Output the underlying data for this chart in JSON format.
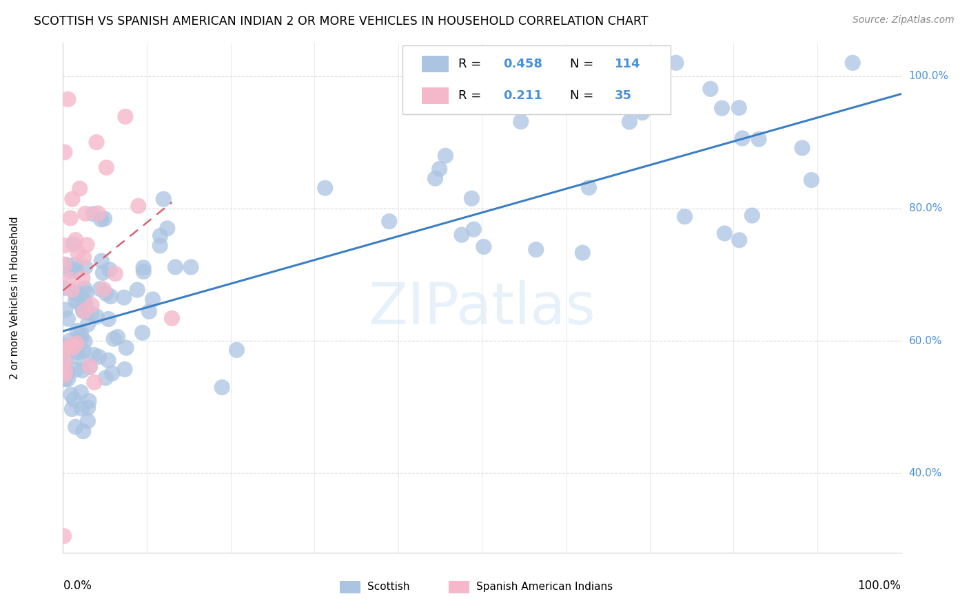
{
  "title": "SCOTTISH VS SPANISH AMERICAN INDIAN 2 OR MORE VEHICLES IN HOUSEHOLD CORRELATION CHART",
  "source": "Source: ZipAtlas.com",
  "ylabel": "2 or more Vehicles in Household",
  "legend_scottish": "Scottish",
  "legend_spanish": "Spanish American Indians",
  "R_scottish": 0.458,
  "N_scottish": 114,
  "R_spanish": 0.211,
  "N_spanish": 35,
  "scottish_color": "#aac4e2",
  "spanish_color": "#f5b8cb",
  "scottish_line_color": "#3a7fc1",
  "spanish_line_color": "#d96070",
  "watermark_color": "#d0e4f5",
  "right_label_color": "#4a90d9",
  "grid_color": "#d8d8d8",
  "right_labels": {
    "1.0": "100.0%",
    "0.8": "80.0%",
    "0.6": "60.0%",
    "0.4": "40.0%"
  },
  "xlim": [
    0.0,
    1.0
  ],
  "ylim": [
    0.28,
    1.05
  ]
}
